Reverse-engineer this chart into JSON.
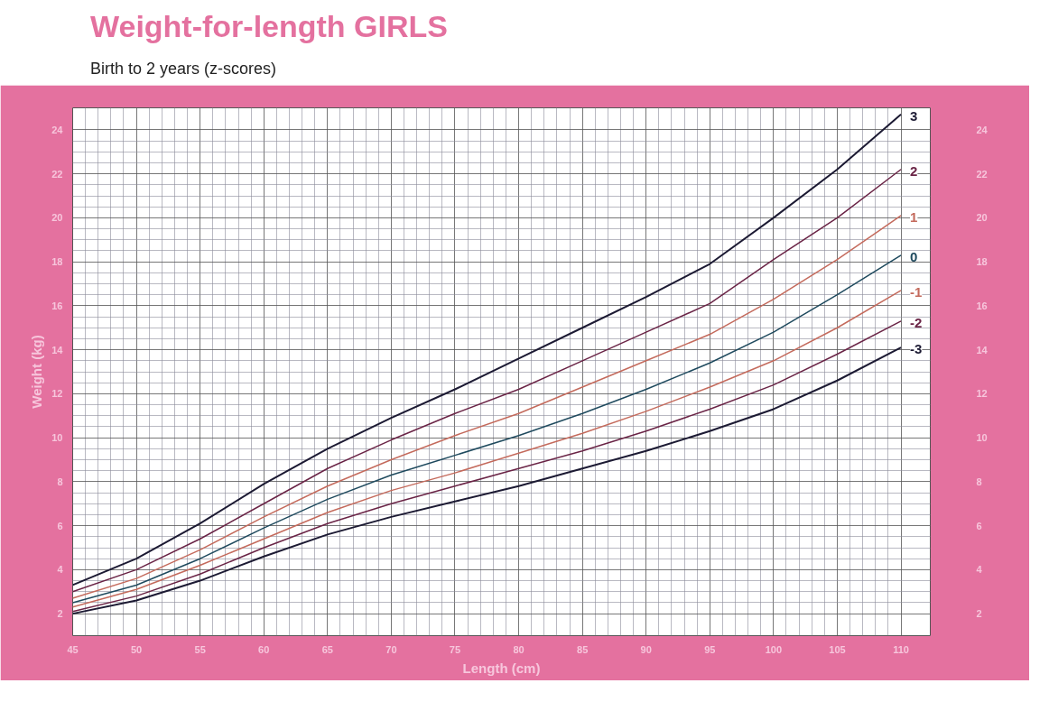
{
  "chart_data": {
    "type": "line",
    "title": "Weight-for-length GIRLS",
    "subtitle": "Birth to 2 years (z-scores)",
    "xlabel": "Length (cm)",
    "ylabel": "Weight (kg)",
    "x": [
      45,
      50,
      55,
      60,
      65,
      70,
      75,
      80,
      85,
      90,
      95,
      100,
      105,
      110
    ],
    "series": [
      {
        "name": "3",
        "color": "#1c1a33",
        "values": [
          3.3,
          4.5,
          6.1,
          7.9,
          9.5,
          10.9,
          12.2,
          13.6,
          15.0,
          16.4,
          17.9,
          20.0,
          22.2,
          24.7
        ]
      },
      {
        "name": "2",
        "color": "#6a2446",
        "values": [
          3.0,
          4.0,
          5.4,
          7.0,
          8.6,
          9.9,
          11.1,
          12.2,
          13.5,
          14.8,
          16.1,
          18.1,
          20.0,
          22.2
        ]
      },
      {
        "name": "1",
        "color": "#c46a5c",
        "values": [
          2.7,
          3.6,
          4.9,
          6.4,
          7.8,
          9.0,
          10.1,
          11.1,
          12.3,
          13.5,
          14.7,
          16.3,
          18.1,
          20.1
        ]
      },
      {
        "name": "0",
        "color": "#1f4a5e",
        "values": [
          2.5,
          3.3,
          4.5,
          5.9,
          7.2,
          8.3,
          9.2,
          10.1,
          11.1,
          12.2,
          13.4,
          14.8,
          16.5,
          18.3
        ]
      },
      {
        "name": "-1",
        "color": "#c46a5c",
        "values": [
          2.3,
          3.1,
          4.2,
          5.4,
          6.6,
          7.6,
          8.4,
          9.3,
          10.2,
          11.2,
          12.3,
          13.5,
          15.0,
          16.7
        ]
      },
      {
        "name": "-2",
        "color": "#6a2446",
        "values": [
          2.1,
          2.8,
          3.8,
          5.0,
          6.1,
          7.0,
          7.8,
          8.6,
          9.4,
          10.3,
          11.3,
          12.4,
          13.8,
          15.3
        ]
      },
      {
        "name": "-3",
        "color": "#1c1a33",
        "values": [
          2.0,
          2.6,
          3.5,
          4.6,
          5.6,
          6.4,
          7.1,
          7.8,
          8.6,
          9.4,
          10.3,
          11.3,
          12.6,
          14.1
        ]
      }
    ],
    "xlim": [
      45,
      112.3
    ],
    "xticks": [
      45,
      50,
      55,
      60,
      65,
      70,
      75,
      80,
      85,
      90,
      95,
      100,
      105,
      110
    ],
    "ylim": [
      1,
      25
    ],
    "yticks": [
      2,
      4,
      6,
      8,
      10,
      12,
      14,
      16,
      18,
      20,
      22,
      24
    ],
    "y2lim": [
      1,
      25
    ],
    "y2ticks": [
      2,
      4,
      6,
      8,
      10,
      12,
      14,
      16,
      18,
      20,
      22,
      24
    ],
    "grid": true,
    "marker": "none",
    "line_style": "solid"
  }
}
